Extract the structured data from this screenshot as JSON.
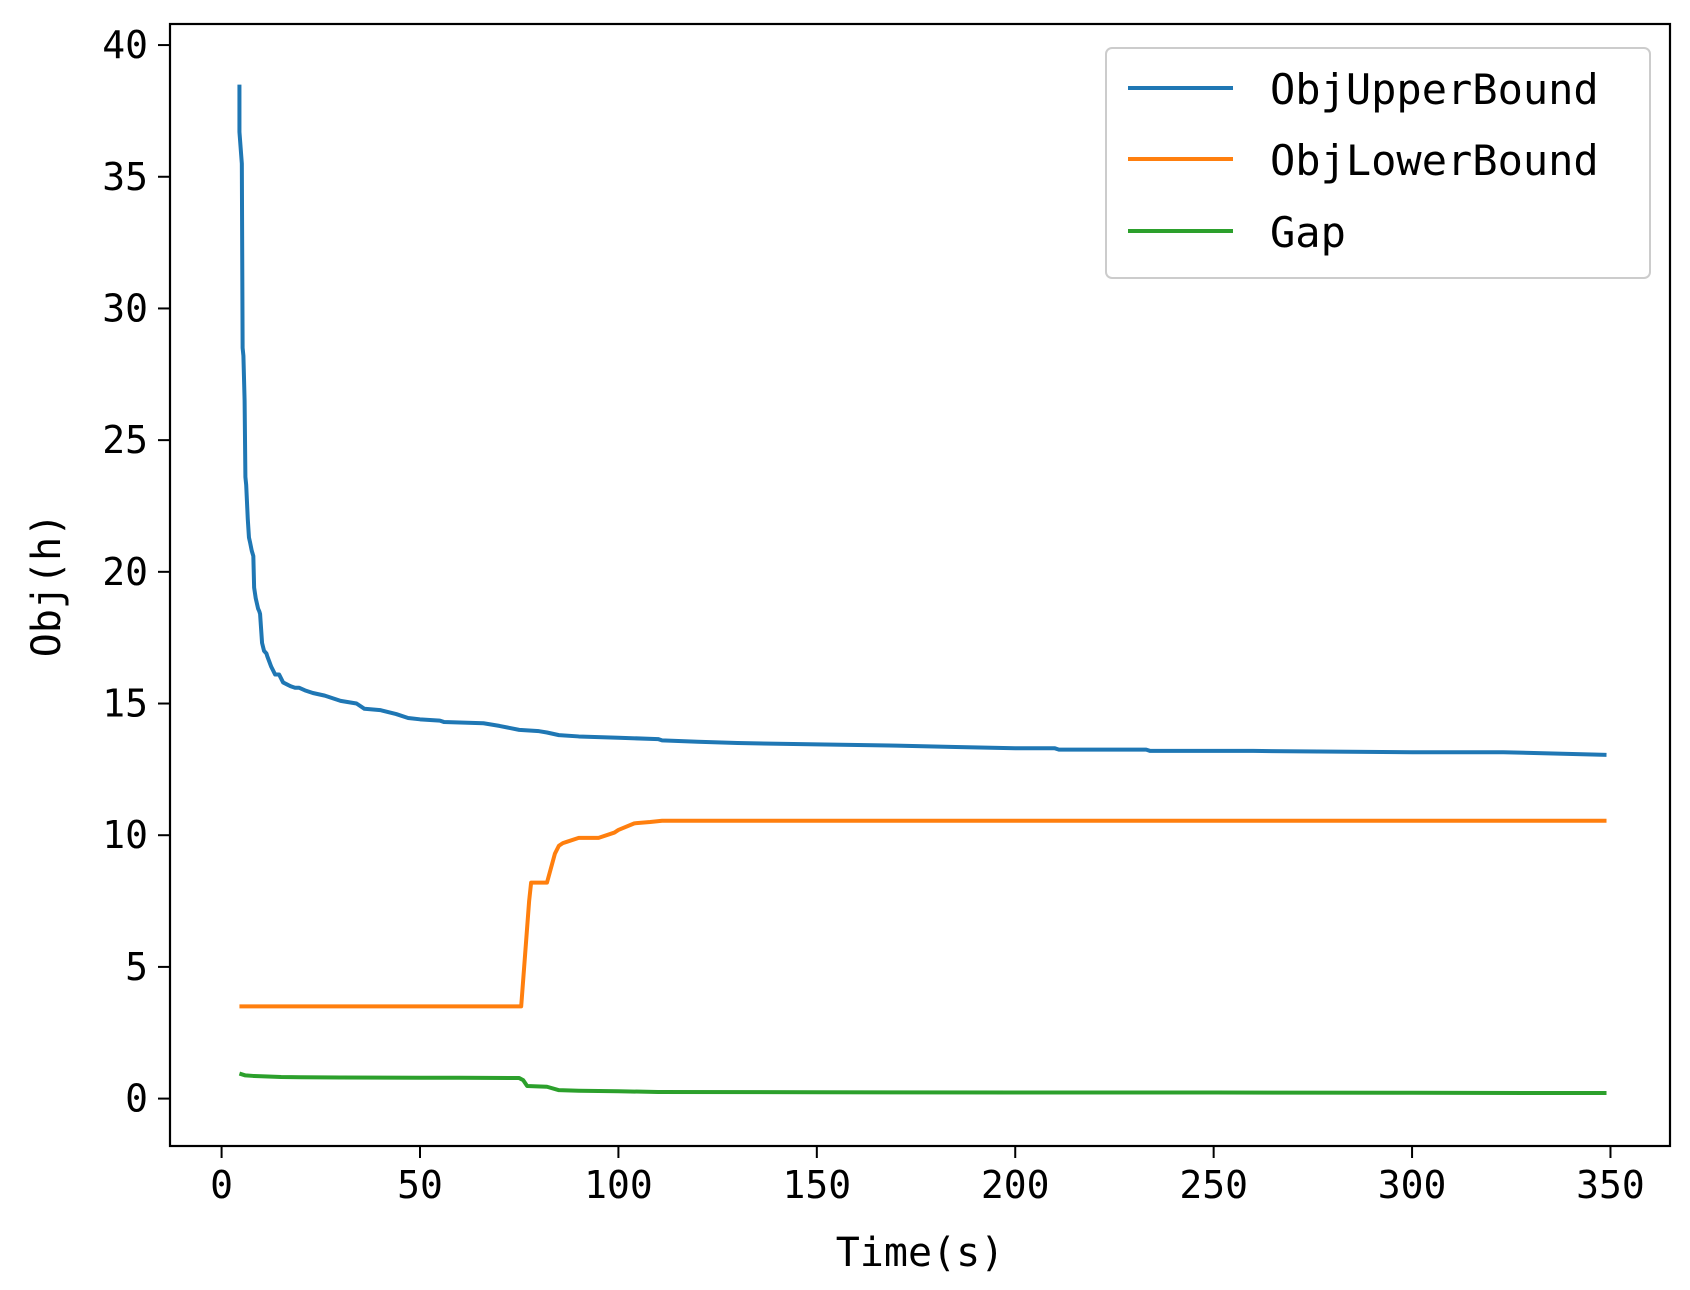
{
  "chart_data": {
    "type": "line",
    "title": "",
    "xlabel": "Time(s)",
    "ylabel": "Obj(h)",
    "xlim": [
      -13,
      365
    ],
    "ylim": [
      -1.8,
      40.8
    ],
    "xticks": [
      0,
      50,
      100,
      150,
      200,
      250,
      300,
      350
    ],
    "yticks": [
      0,
      5,
      10,
      15,
      20,
      25,
      30,
      35,
      40
    ],
    "grid": false,
    "legend_position": "top-right",
    "series": [
      {
        "name": "ObjUpperBound",
        "color": "#1f77b4",
        "x": [
          4.5,
          4.5,
          4.6,
          5.1,
          5.3,
          5.5,
          5.8,
          6.0,
          6.2,
          6.6,
          6.9,
          7.2,
          7.6,
          8.0,
          8.2,
          8.6,
          9.2,
          9.5,
          9.7,
          10.2,
          10.7,
          11.3,
          11.5,
          12.0,
          12.5,
          13.5,
          14.5,
          15.5,
          16.8,
          17.5,
          18.5,
          19.5,
          21,
          23,
          26,
          28,
          30,
          34,
          36,
          40,
          44,
          47,
          50,
          55,
          56,
          60,
          66,
          70,
          75,
          80,
          82,
          85,
          90,
          100,
          110,
          111,
          120,
          130,
          150,
          170,
          185,
          200,
          210,
          211,
          233,
          234,
          260,
          300,
          323,
          349
        ],
        "y": [
          38.5,
          36.7,
          36.5,
          35.5,
          28.5,
          28.2,
          26.5,
          23.6,
          23.3,
          22.0,
          21.3,
          21.1,
          20.8,
          20.6,
          19.4,
          19.0,
          18.6,
          18.5,
          18.4,
          17.3,
          17.0,
          16.9,
          16.8,
          16.6,
          16.4,
          16.1,
          16.1,
          15.8,
          15.7,
          15.65,
          15.6,
          15.6,
          15.5,
          15.4,
          15.3,
          15.2,
          15.1,
          15.0,
          14.8,
          14.75,
          14.6,
          14.45,
          14.4,
          14.35,
          14.3,
          14.28,
          14.25,
          14.15,
          14.0,
          13.95,
          13.9,
          13.8,
          13.75,
          13.7,
          13.65,
          13.6,
          13.55,
          13.5,
          13.45,
          13.4,
          13.35,
          13.3,
          13.3,
          13.25,
          13.25,
          13.2,
          13.2,
          13.15,
          13.15,
          13.05
        ]
      },
      {
        "name": "ObjLowerBound",
        "color": "#ff7f0e",
        "x": [
          4.5,
          75.5,
          76.5,
          77.5,
          78,
          82,
          84,
          85,
          86,
          87,
          90,
          95,
          99,
          100,
          104,
          108,
          111,
          150,
          349
        ],
        "y": [
          3.5,
          3.5,
          5.5,
          7.5,
          8.2,
          8.2,
          9.3,
          9.6,
          9.7,
          9.75,
          9.9,
          9.9,
          10.1,
          10.2,
          10.45,
          10.5,
          10.55,
          10.55,
          10.55
        ]
      },
      {
        "name": "Gap",
        "color": "#2ca02c",
        "x": [
          4.5,
          6,
          8,
          10,
          15,
          20,
          30,
          50,
          60,
          75,
          76,
          77,
          82,
          85,
          90,
          100,
          110,
          150,
          200,
          250,
          300,
          349
        ],
        "y": [
          0.95,
          0.88,
          0.86,
          0.85,
          0.82,
          0.81,
          0.8,
          0.79,
          0.79,
          0.78,
          0.7,
          0.48,
          0.45,
          0.32,
          0.3,
          0.28,
          0.25,
          0.24,
          0.23,
          0.23,
          0.22,
          0.21
        ]
      }
    ]
  }
}
